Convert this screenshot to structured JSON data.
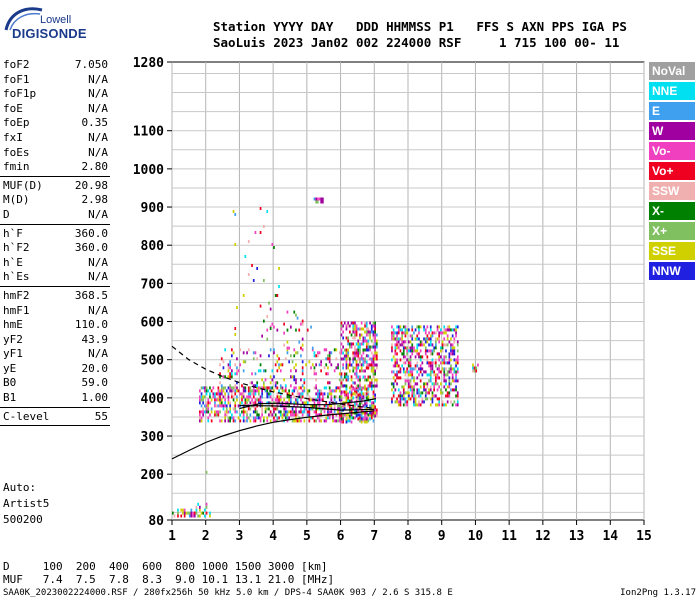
{
  "logo": {
    "top": "Lowell",
    "bottom": "DIGISONDE"
  },
  "header": {
    "line1": "Station YYYY DAY   DDD HHMMSS P1   FFS S AXN PPS IGA PS",
    "line2": "SaoLuis 2023 Jan02 002 224000 RSF     1 715 100 00- 11"
  },
  "params_a": [
    {
      "name": "foF2",
      "value": "7.050"
    },
    {
      "name": "foF1",
      "value": "N/A"
    },
    {
      "name": "foF1p",
      "value": "N/A"
    },
    {
      "name": "foE",
      "value": "N/A"
    },
    {
      "name": "foEp",
      "value": "0.35"
    },
    {
      "name": "fxI",
      "value": "N/A"
    },
    {
      "name": "foEs",
      "value": "N/A"
    },
    {
      "name": "fmin",
      "value": "2.80"
    }
  ],
  "params_b": [
    {
      "name": "MUF(D)",
      "value": "20.98"
    },
    {
      "name": "M(D)",
      "value": "2.98"
    },
    {
      "name": "D",
      "value": "N/A"
    }
  ],
  "params_c": [
    {
      "name": "h`F",
      "value": "360.0"
    },
    {
      "name": "h`F2",
      "value": "360.0"
    },
    {
      "name": "h`E",
      "value": "N/A"
    },
    {
      "name": "h`Es",
      "value": "N/A"
    }
  ],
  "params_d": [
    {
      "name": "hmF2",
      "value": "368.5"
    },
    {
      "name": "hmF1",
      "value": "N/A"
    },
    {
      "name": "hmE",
      "value": "110.0"
    },
    {
      "name": "yF2",
      "value": "43.9"
    },
    {
      "name": "yF1",
      "value": "N/A"
    },
    {
      "name": "yE",
      "value": "20.0"
    },
    {
      "name": "B0",
      "value": "59.0"
    },
    {
      "name": "B1",
      "value": "1.00"
    }
  ],
  "params_e": [
    {
      "name": "C-level",
      "value": "55"
    }
  ],
  "auto": {
    "l1": "Auto:",
    "l2": "Artist5",
    "l3": "500200"
  },
  "legend": [
    {
      "label": "NoVal",
      "color": "#a0a0a0"
    },
    {
      "label": "NNE",
      "color": "#00e0f0"
    },
    {
      "label": "E",
      "color": "#40a0f0"
    },
    {
      "label": "W",
      "color": "#a000a0"
    },
    {
      "label": "Vo-",
      "color": "#f040c0"
    },
    {
      "label": "Vo+",
      "color": "#f00020"
    },
    {
      "label": "SSW",
      "color": "#f0b0b0"
    },
    {
      "label": "X-",
      "color": "#008000"
    },
    {
      "label": "X+",
      "color": "#80c060"
    },
    {
      "label": "SSE",
      "color": "#d0d000"
    },
    {
      "label": "NNW",
      "color": "#2020e0"
    }
  ],
  "footer": {
    "d_row": "D     100  200  400  600  800 1000 1500 3000 [km]",
    "muf_row": "MUF   7.4  7.5  7.8  8.3  9.0 10.1 13.1 21.0 [MHz]",
    "file_line": "SAA0K_2023002224000.RSF / 280fx256h 50 kHz 5.0 km / DPS-4 SAA0K 903 / 2.6 S 315.8 E",
    "version": "Ion2Png 1.3.17"
  },
  "chart_data": {
    "type": "scatter",
    "title": "",
    "xlabel": "",
    "ylabel": "",
    "xlim": [
      1,
      15
    ],
    "ylim": [
      80,
      1280
    ],
    "x_ticks": [
      1,
      2,
      3,
      4,
      5,
      6,
      7,
      8,
      9,
      10,
      11,
      12,
      13,
      14,
      15
    ],
    "y_ticks": [
      80,
      200,
      300,
      400,
      500,
      600,
      700,
      800,
      900,
      1000,
      1100,
      1280
    ],
    "grid": true,
    "series": [
      {
        "values": [
          [
            1.0,
            240
          ],
          [
            1.5,
            262
          ],
          [
            2.0,
            283
          ],
          [
            2.5,
            300
          ],
          [
            3.0,
            314
          ],
          [
            3.5,
            326
          ],
          [
            4.0,
            336
          ],
          [
            4.5,
            343
          ],
          [
            5.0,
            349
          ],
          [
            5.5,
            354
          ],
          [
            6.0,
            358
          ],
          [
            6.5,
            362
          ],
          [
            7.0,
            366
          ]
        ]
      },
      {
        "values": [
          [
            1.0,
            535
          ],
          [
            1.5,
            500
          ],
          [
            2.0,
            475
          ],
          [
            2.5,
            456
          ],
          [
            3.0,
            440
          ],
          [
            3.5,
            427
          ],
          [
            4.0,
            416
          ],
          [
            4.5,
            407
          ],
          [
            5.0,
            398
          ],
          [
            5.5,
            391
          ],
          [
            6.0,
            384
          ],
          [
            6.5,
            378
          ],
          [
            7.05,
            372
          ]
        ]
      },
      {
        "values": [
          [
            3.0,
            372
          ],
          [
            3.6,
            385
          ],
          [
            4.2,
            386
          ],
          [
            5.0,
            382
          ],
          [
            5.6,
            382
          ],
          [
            6.2,
            387
          ],
          [
            6.7,
            392
          ],
          [
            7.05,
            398
          ]
        ]
      },
      {
        "values": [
          [
            3.0,
            380
          ],
          [
            4.0,
            379
          ],
          [
            5.0,
            375
          ],
          [
            6.0,
            368
          ],
          [
            7.0,
            370
          ]
        ]
      }
    ],
    "echo_clusters": [
      {
        "x": [
          1.0,
          2.1
        ],
        "y": [
          90,
          110
        ],
        "density": 0.55
      },
      {
        "x": [
          1.7,
          2.0
        ],
        "y": [
          110,
          125
        ],
        "density": 0.35
      },
      {
        "x": [
          1.95,
          2.05
        ],
        "y": [
          130,
          240
        ],
        "density": 0.12
      },
      {
        "x": [
          1.8,
          7.0
        ],
        "y": [
          340,
          430
        ],
        "density": 0.55
      },
      {
        "x": [
          2.4,
          7.0
        ],
        "y": [
          430,
          530
        ],
        "density": 0.18
      },
      {
        "x": [
          3.6,
          5.2
        ],
        "y": [
          520,
          660
        ],
        "density": 0.05
      },
      {
        "x": [
          2.8,
          4.2
        ],
        "y": [
          550,
          900
        ],
        "density": 0.02
      },
      {
        "x": [
          6.0,
          7.1
        ],
        "y": [
          340,
          600
        ],
        "density": 0.45
      },
      {
        "x": [
          7.5,
          9.5
        ],
        "y": [
          380,
          590
        ],
        "density": 0.5
      },
      {
        "x": [
          5.2,
          5.5
        ],
        "y": [
          910,
          925
        ],
        "density": 0.5
      },
      {
        "x": [
          9.9,
          10.1
        ],
        "y": [
          470,
          490
        ],
        "density": 0.6
      }
    ]
  }
}
